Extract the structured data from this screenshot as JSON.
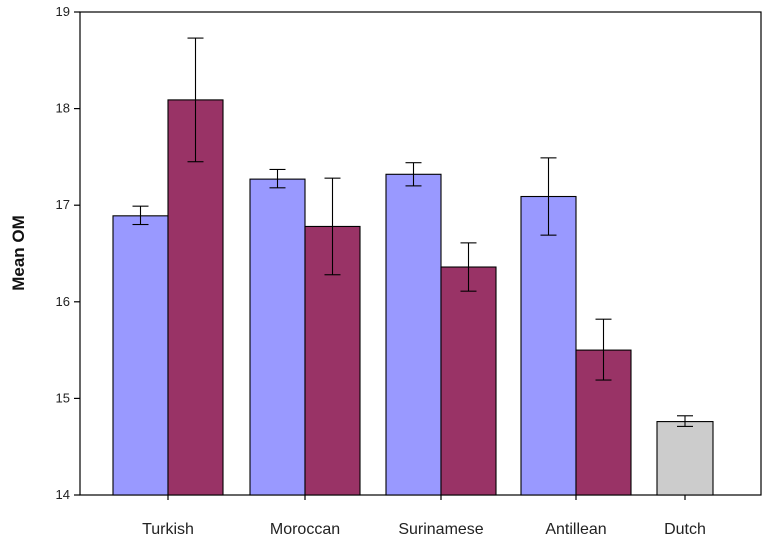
{
  "chart_data": {
    "type": "bar",
    "ylabel": "Mean OM",
    "xlabel": "",
    "ylim": [
      14,
      19
    ],
    "yticks": [
      "14",
      "15",
      "16",
      "17",
      "18",
      "19"
    ],
    "categories": [
      "Turkish",
      "Moroccan",
      "Surinamese",
      "Antillean",
      "Dutch"
    ],
    "bars": [
      {
        "category": "Turkish",
        "group": 1,
        "color": "#9999ff",
        "value": 16.89,
        "err_low": 16.8,
        "err_high": 16.99
      },
      {
        "category": "Turkish",
        "group": 2,
        "color": "#993366",
        "value": 18.09,
        "err_low": 17.45,
        "err_high": 18.73
      },
      {
        "category": "Moroccan",
        "group": 1,
        "color": "#9999ff",
        "value": 17.27,
        "err_low": 17.18,
        "err_high": 17.37
      },
      {
        "category": "Moroccan",
        "group": 2,
        "color": "#993366",
        "value": 16.78,
        "err_low": 16.28,
        "err_high": 17.28
      },
      {
        "category": "Surinamese",
        "group": 1,
        "color": "#9999ff",
        "value": 17.32,
        "err_low": 17.2,
        "err_high": 17.44
      },
      {
        "category": "Surinamese",
        "group": 2,
        "color": "#993366",
        "value": 16.36,
        "err_low": 16.11,
        "err_high": 16.61
      },
      {
        "category": "Antillean",
        "group": 1,
        "color": "#9999ff",
        "value": 17.09,
        "err_low": 16.69,
        "err_high": 17.49
      },
      {
        "category": "Antillean",
        "group": 2,
        "color": "#993366",
        "value": 15.5,
        "err_low": 15.19,
        "err_high": 15.82
      },
      {
        "category": "Dutch",
        "group": 0,
        "color": "#cccccc",
        "value": 14.76,
        "err_low": 14.71,
        "err_high": 14.82
      }
    ],
    "grid": false,
    "legend": "none"
  }
}
